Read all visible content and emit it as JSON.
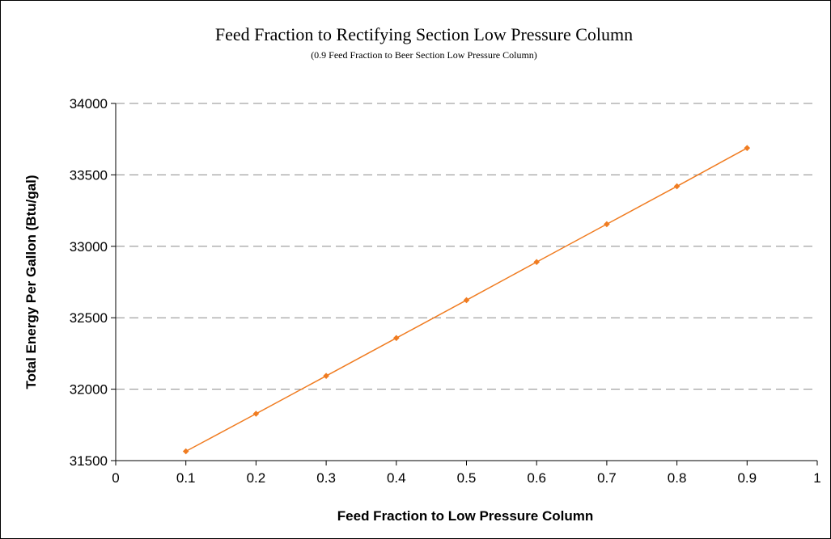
{
  "chart_data": {
    "type": "line",
    "title": "Feed Fraction to Rectifying Section Low Pressure Column",
    "subtitle": "(0.9 Feed Fraction to Beer Section Low Pressure Column)",
    "xlabel": "Feed Fraction to Low Pressure Column",
    "ylabel": "Total Energy Per Gallon (Btu/gal)",
    "xlim": [
      0,
      1
    ],
    "ylim": [
      31500,
      34000
    ],
    "x_ticks": [
      0,
      0.1,
      0.2,
      0.3,
      0.4,
      0.5,
      0.6,
      0.7,
      0.8,
      0.9,
      1
    ],
    "x_tick_labels": [
      "0",
      "0.1",
      "0.2",
      "0.3",
      "0.4",
      "0.5",
      "0.6",
      "0.7",
      "0.8",
      "0.9",
      "1"
    ],
    "y_ticks": [
      31500,
      32000,
      32500,
      33000,
      33500,
      34000
    ],
    "y_tick_labels": [
      "31500",
      "32000",
      "32500",
      "33000",
      "33500",
      "34000"
    ],
    "grid": "horizontal dashed",
    "legend": "none",
    "series": [
      {
        "color": "#f07c21",
        "x": [
          0.1,
          0.2,
          0.3,
          0.4,
          0.5,
          0.6,
          0.7,
          0.8,
          0.9
        ],
        "y": [
          31565,
          31828,
          32093,
          32358,
          32623,
          32890,
          33155,
          33420,
          33688
        ]
      }
    ],
    "colors": {
      "grid": "#8c8c8c",
      "axis": "#000000",
      "text": "#000000"
    }
  }
}
